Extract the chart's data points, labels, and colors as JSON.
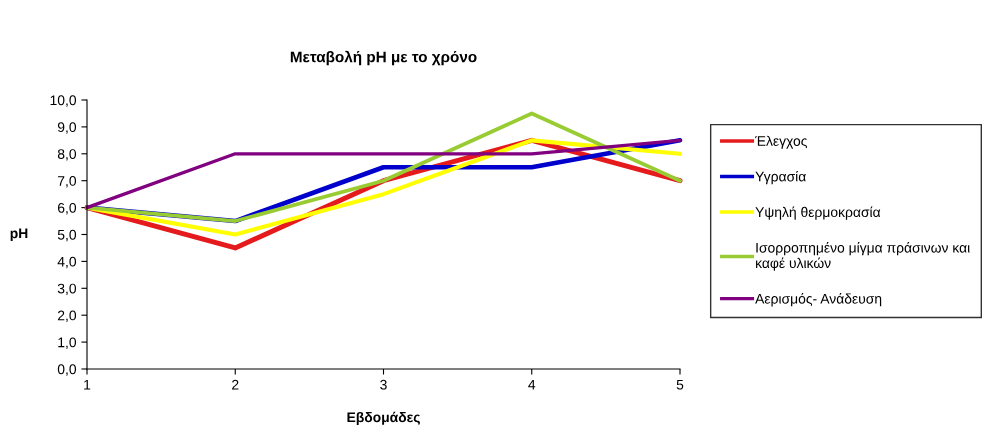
{
  "chart_data": {
    "type": "line",
    "title": "Μεταβολή pH με το χρόνο",
    "xlabel": "Εβδομάδες",
    "ylabel": "pH",
    "x": [
      1,
      2,
      3,
      4,
      5
    ],
    "xlim": [
      1,
      5
    ],
    "xticks": [
      1,
      2,
      3,
      4,
      5
    ],
    "ylim": [
      0,
      10
    ],
    "yticks": [
      {
        "value": 0,
        "label": "0,0"
      },
      {
        "value": 1,
        "label": "1,0"
      },
      {
        "value": 2,
        "label": "2,0"
      },
      {
        "value": 3,
        "label": "3,0"
      },
      {
        "value": 4,
        "label": "4,0"
      },
      {
        "value": 5,
        "label": "5,0"
      },
      {
        "value": 6,
        "label": "6,0"
      },
      {
        "value": 7,
        "label": "7,0"
      },
      {
        "value": 8,
        "label": "8,0"
      },
      {
        "value": 9,
        "label": "9,0"
      },
      {
        "value": 10,
        "label": "10,0"
      }
    ],
    "grid": false,
    "legend": "right",
    "marker": "none",
    "line_style": "solid",
    "series": [
      {
        "name": "Έλεγχος",
        "color": "#e41a1c",
        "values": [
          6,
          4.5,
          7,
          8.5,
          7
        ]
      },
      {
        "name": "Υγρασία",
        "color": "#0000cc",
        "values": [
          6,
          5.5,
          7.5,
          7.5,
          8.5
        ]
      },
      {
        "name": "Υψηλή θερμοκρασία",
        "color": "#ffff00",
        "values": [
          6,
          5,
          6.5,
          8.5,
          8
        ]
      },
      {
        "name": "Ισορροπημένο μίγμα πράσινων και\nκαφέ υλικών",
        "color": "#99cc33",
        "values": [
          6,
          5.5,
          7,
          9.5,
          7
        ]
      },
      {
        "name": "Αερισμός- Ανάδευση",
        "color": "#800080",
        "values": [
          6,
          8,
          8,
          8,
          8.5
        ]
      }
    ]
  }
}
